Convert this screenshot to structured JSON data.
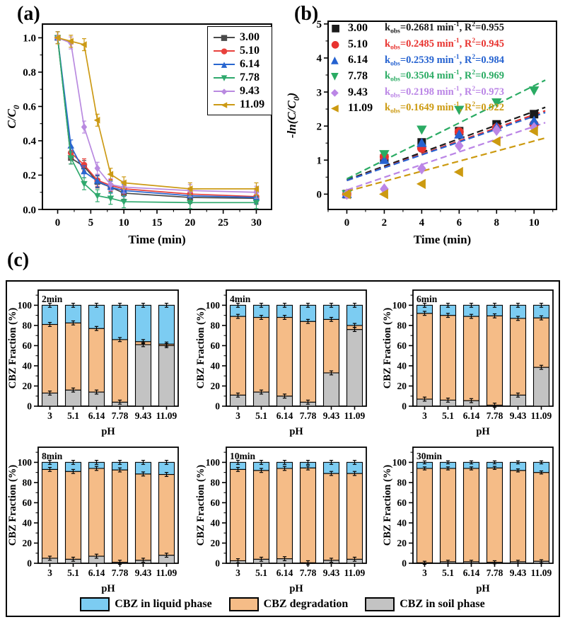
{
  "panel_a": {
    "label": "(a)"
  },
  "panel_b": {
    "label": "(b)"
  },
  "panel_c": {
    "label": "(c)",
    "legend": [
      {
        "label": "CBZ in liquid phase",
        "color": "#7cccf2"
      },
      {
        "label": "CBZ degradation",
        "color": "#f5bc87"
      },
      {
        "label": "CBZ in soil phase",
        "color": "#c3c3c3"
      }
    ]
  },
  "chart_data": [
    {
      "id": "chart-a",
      "type": "line",
      "xlabel": "Time (min)",
      "ylabel": [
        {
          "t": "C/C",
          "i": 1
        },
        {
          "t": "0",
          "i": 1,
          "sub": 1
        }
      ],
      "xlim": [
        -2.3,
        32.3
      ],
      "ylim": [
        0,
        1.08
      ],
      "xticks": [
        0,
        5,
        10,
        15,
        20,
        25,
        30
      ],
      "xtick_labels": [
        "0",
        "5",
        "10",
        "15",
        "20",
        "25",
        "30"
      ],
      "yticks": [
        0,
        0.2,
        0.4,
        0.6,
        0.8,
        1.0
      ],
      "ytick_labels": [
        "0.0",
        "0.2",
        "0.4",
        "0.6",
        "0.8",
        "1.0"
      ],
      "x": [
        0,
        2,
        4,
        6,
        8,
        10,
        20,
        30
      ],
      "err": 0.035,
      "series": [
        {
          "name": "3.00",
          "color": "#4a4a4a",
          "marker": "square",
          "values": [
            1.0,
            0.3,
            0.25,
            0.16,
            0.13,
            0.095,
            0.07,
            0.065
          ]
        },
        {
          "name": "5.10",
          "color": "#e8413c",
          "marker": "circle",
          "values": [
            1.0,
            0.33,
            0.26,
            0.17,
            0.14,
            0.12,
            0.09,
            0.075
          ]
        },
        {
          "name": "6.14",
          "color": "#2966d0",
          "marker": "triangle-up",
          "values": [
            1.0,
            0.37,
            0.22,
            0.165,
            0.13,
            0.11,
            0.08,
            0.07
          ]
        },
        {
          "name": "7.78",
          "color": "#2fa96d",
          "marker": "triangle-down",
          "values": [
            1.0,
            0.3,
            0.15,
            0.08,
            0.065,
            0.045,
            0.04,
            0.04
          ]
        },
        {
          "name": "9.43",
          "color": "#b98ae0",
          "marker": "diamond",
          "values": [
            1.0,
            0.97,
            0.48,
            0.24,
            0.145,
            0.13,
            0.11,
            0.1
          ]
        },
        {
          "name": "11.09",
          "color": "#cc9a15",
          "marker": "triangle-left",
          "values": [
            1.0,
            0.98,
            0.96,
            0.52,
            0.205,
            0.155,
            0.12,
            0.12
          ]
        }
      ]
    },
    {
      "id": "chart-b",
      "type": "scatter",
      "xlabel": "Time (min)",
      "ylabel": [
        {
          "t": "-ln(",
          "i": 1
        },
        {
          "t": "C/C",
          "i": 1
        },
        {
          "t": "0",
          "i": 1,
          "sub": 1
        },
        {
          "t": ")",
          "i": 1
        }
      ],
      "xlim": [
        -1,
        11.2
      ],
      "ylim": [
        -0.45,
        5.08
      ],
      "xticks": [
        0,
        2,
        4,
        6,
        8,
        10
      ],
      "xtick_labels": [
        "0",
        "2",
        "4",
        "6",
        "8",
        "10"
      ],
      "yticks": [
        0,
        1,
        2,
        3,
        4,
        5
      ],
      "ytick_labels": [
        "0",
        "1",
        "2",
        "3",
        "4",
        "5"
      ],
      "x": [
        0,
        2,
        4,
        6,
        8,
        10
      ],
      "series": [
        {
          "name": "3.00",
          "color": "#1a1a1a",
          "marker": "square",
          "kobs": "0.2681",
          "r2": "0.955",
          "fit_label": [
            {
              "t": "k"
            },
            {
              "t": "obs",
              "sub": 1
            },
            {
              "t": "=0.2681 min"
            },
            {
              "t": "-1",
              "sup": 1
            },
            {
              "t": ", R"
            },
            {
              "t": "2",
              "sup": 1
            },
            {
              "t": "=0.955"
            }
          ],
          "values": [
            0,
            1.05,
            1.52,
            1.85,
            2.05,
            2.35
          ],
          "fit": {
            "x0": 0,
            "y0": 0.42,
            "x1": 10.6,
            "y1": 2.55
          }
        },
        {
          "name": "5.10",
          "color": "#e8332f",
          "marker": "circle",
          "kobs": "0.2485",
          "r2": "0.945",
          "fit_label": [
            {
              "t": "k"
            },
            {
              "t": "obs",
              "sub": 1
            },
            {
              "t": "=0.2485 min"
            },
            {
              "t": "-1",
              "sup": 1
            },
            {
              "t": ", R"
            },
            {
              "t": "2",
              "sup": 1
            },
            {
              "t": "=0.945"
            }
          ],
          "values": [
            0,
            1.1,
            1.35,
            1.83,
            1.95,
            2.05
          ],
          "fit": {
            "x0": 0,
            "y0": 0.4,
            "x1": 10.6,
            "y1": 2.45
          }
        },
        {
          "name": "6.14",
          "color": "#2562d0",
          "marker": "triangle-up",
          "kobs": "0.2539",
          "r2": "0.984",
          "fit_label": [
            {
              "t": "k"
            },
            {
              "t": "obs",
              "sub": 1
            },
            {
              "t": "=0.2539 min"
            },
            {
              "t": "-1",
              "sup": 1
            },
            {
              "t": ", R"
            },
            {
              "t": "2",
              "sup": 1
            },
            {
              "t": "=0.984"
            }
          ],
          "values": [
            0,
            1.0,
            1.5,
            1.75,
            1.97,
            2.15
          ],
          "fit": {
            "x0": 0,
            "y0": 0.4,
            "x1": 10.6,
            "y1": 2.4
          }
        },
        {
          "name": "7.78",
          "color": "#2aab63",
          "marker": "triangle-down",
          "kobs": "0.3504",
          "r2": "0.969",
          "fit_label": [
            {
              "t": "k"
            },
            {
              "t": "obs",
              "sub": 1
            },
            {
              "t": "=0.3504 min"
            },
            {
              "t": "-1",
              "sup": 1
            },
            {
              "t": ", R"
            },
            {
              "t": "2",
              "sup": 1
            },
            {
              "t": "=0.969"
            }
          ],
          "values": [
            0,
            1.18,
            1.9,
            2.48,
            2.7,
            3.05
          ],
          "fit": {
            "x0": 0,
            "y0": 0.45,
            "x1": 10.6,
            "y1": 3.35
          }
        },
        {
          "name": "9.43",
          "color": "#bb86e6",
          "marker": "diamond",
          "kobs": "0.2198",
          "r2": "0.973",
          "fit_label": [
            {
              "t": "k"
            },
            {
              "t": "obs",
              "sub": 1
            },
            {
              "t": "=0.2198 min"
            },
            {
              "t": "-1",
              "sup": 1
            },
            {
              "t": ", R"
            },
            {
              "t": "2",
              "sup": 1
            },
            {
              "t": "=0.973"
            }
          ],
          "values": [
            0,
            0.15,
            0.75,
            1.42,
            1.88,
            1.95
          ],
          "fit": {
            "x0": 0,
            "y0": 0.12,
            "x1": 10.6,
            "y1": 2.1
          }
        },
        {
          "name": "11.09",
          "color": "#cc9a10",
          "marker": "triangle-left",
          "kobs": "0.1649",
          "r2": "0.922",
          "fit_label": [
            {
              "t": "k"
            },
            {
              "t": "obs",
              "sub": 1
            },
            {
              "t": "=0.1649 min"
            },
            {
              "t": "-1",
              "sup": 1
            },
            {
              "t": ", R"
            },
            {
              "t": "2",
              "sup": 1
            },
            {
              "t": "=0.922"
            }
          ],
          "values": [
            0,
            0.0,
            0.3,
            0.65,
            1.55,
            1.85
          ],
          "fit": {
            "x0": 0,
            "y0": 0.08,
            "x1": 10.6,
            "y1": 1.65
          }
        }
      ]
    },
    {
      "id": "chart-2min",
      "type": "bar",
      "title": "2min",
      "xlabel": "pH",
      "ylabel": "CBZ Fraction (%)",
      "ylim": [
        0,
        115
      ],
      "yticks": [
        0,
        20,
        40,
        60,
        80,
        100
      ],
      "ytick_labels": [
        "0",
        "20",
        "40",
        "60",
        "80",
        "100"
      ],
      "categories": [
        "3",
        "5.1",
        "6.14",
        "7.78",
        "9.43",
        "11.09"
      ],
      "err": 2,
      "series": [
        {
          "name": "CBZ in soil phase",
          "color": "#c3c3c3",
          "values": [
            13,
            16,
            14,
            4,
            61,
            60
          ]
        },
        {
          "name": "CBZ degradation",
          "color": "#f5bc87",
          "values": [
            68,
            66.5,
            63,
            62,
            3,
            1.5
          ]
        },
        {
          "name": "CBZ in liquid phase",
          "color": "#7cccf2",
          "values": [
            19,
            17.5,
            23,
            34,
            36,
            38.5
          ]
        }
      ]
    },
    {
      "id": "chart-4min",
      "type": "bar",
      "title": "4min",
      "xlabel": "pH",
      "ylabel": "CBZ Fraction (%)",
      "ylim": [
        0,
        115
      ],
      "yticks": [
        0,
        20,
        40,
        60,
        80,
        100
      ],
      "ytick_labels": [
        "0",
        "20",
        "40",
        "60",
        "80",
        "100"
      ],
      "categories": [
        "3",
        "5.1",
        "6.14",
        "7.78",
        "9.43",
        "11.09"
      ],
      "err": 2,
      "series": [
        {
          "name": "CBZ in soil phase",
          "color": "#c3c3c3",
          "values": [
            11,
            14,
            10,
            4,
            33,
            76
          ]
        },
        {
          "name": "CBZ degradation",
          "color": "#f5bc87",
          "values": [
            78,
            74,
            78,
            80,
            53,
            4
          ]
        },
        {
          "name": "CBZ in liquid phase",
          "color": "#7cccf2",
          "values": [
            11,
            12,
            12,
            16,
            14,
            20
          ]
        }
      ]
    },
    {
      "id": "chart-6min",
      "type": "bar",
      "title": "6min",
      "xlabel": "pH",
      "ylabel": "CBZ Fraction (%)",
      "ylim": [
        0,
        115
      ],
      "yticks": [
        0,
        20,
        40,
        60,
        80,
        100
      ],
      "ytick_labels": [
        "0",
        "20",
        "40",
        "60",
        "80",
        "100"
      ],
      "categories": [
        "3",
        "5.1",
        "6.14",
        "7.78",
        "9.43",
        "11.09"
      ],
      "err": 2,
      "series": [
        {
          "name": "CBZ in soil phase",
          "color": "#c3c3c3",
          "values": [
            7,
            6,
            5.5,
            1,
            11,
            38.5
          ]
        },
        {
          "name": "CBZ degradation",
          "color": "#f5bc87",
          "values": [
            85,
            84,
            83.5,
            88.5,
            76,
            49
          ]
        },
        {
          "name": "CBZ in liquid phase",
          "color": "#7cccf2",
          "values": [
            8,
            10,
            11,
            10.5,
            13,
            12.5
          ]
        }
      ]
    },
    {
      "id": "chart-8min",
      "type": "bar",
      "title": "8min",
      "xlabel": "pH",
      "ylabel": "CBZ Fraction (%)",
      "ylim": [
        0,
        115
      ],
      "yticks": [
        0,
        20,
        40,
        60,
        80,
        100
      ],
      "ytick_labels": [
        "0",
        "20",
        "40",
        "60",
        "80",
        "100"
      ],
      "categories": [
        "3",
        "5.1",
        "6.14",
        "7.78",
        "9.43",
        "11.09"
      ],
      "err": 2,
      "series": [
        {
          "name": "CBZ in soil phase",
          "color": "#c3c3c3",
          "values": [
            5,
            4,
            7,
            1,
            3,
            8
          ]
        },
        {
          "name": "CBZ degradation",
          "color": "#f5bc87",
          "values": [
            88,
            87,
            87,
            91.5,
            85.5,
            80
          ]
        },
        {
          "name": "CBZ in liquid phase",
          "color": "#7cccf2",
          "values": [
            7,
            9,
            6,
            7.5,
            11.5,
            12
          ]
        }
      ]
    },
    {
      "id": "chart-10min",
      "type": "bar",
      "title": "10min",
      "xlabel": "pH",
      "ylabel": "CBZ Fraction (%)",
      "ylim": [
        0,
        115
      ],
      "yticks": [
        0,
        20,
        40,
        60,
        80,
        100
      ],
      "ytick_labels": [
        "0",
        "20",
        "40",
        "60",
        "80",
        "100"
      ],
      "categories": [
        "3",
        "5.1",
        "6.14",
        "7.78",
        "9.43",
        "11.09"
      ],
      "err": 2,
      "series": [
        {
          "name": "CBZ in soil phase",
          "color": "#c3c3c3",
          "values": [
            2.5,
            4,
            4.5,
            0.5,
            3,
            4
          ]
        },
        {
          "name": "CBZ degradation",
          "color": "#f5bc87",
          "values": [
            90.5,
            88,
            89.5,
            94,
            86,
            85
          ]
        },
        {
          "name": "CBZ in liquid phase",
          "color": "#7cccf2",
          "values": [
            7,
            8,
            6,
            5.5,
            11,
            11
          ]
        }
      ]
    },
    {
      "id": "chart-30min",
      "type": "bar",
      "title": "30min",
      "xlabel": "pH",
      "ylabel": "CBZ Fraction (%)",
      "ylim": [
        0,
        115
      ],
      "yticks": [
        0,
        20,
        40,
        60,
        80,
        100
      ],
      "ytick_labels": [
        "0",
        "20",
        "40",
        "60",
        "80",
        "100"
      ],
      "categories": [
        "3",
        "5.1",
        "6.14",
        "7.78",
        "9.43",
        "11.09"
      ],
      "err": 1.5,
      "series": [
        {
          "name": "CBZ in soil phase",
          "color": "#c3c3c3",
          "values": [
            0.5,
            1.5,
            1.5,
            1,
            1.5,
            2
          ]
        },
        {
          "name": "CBZ degradation",
          "color": "#f5bc87",
          "values": [
            93.5,
            92.5,
            92.5,
            93.5,
            90.5,
            88
          ]
        },
        {
          "name": "CBZ in liquid phase",
          "color": "#7cccf2",
          "values": [
            6,
            6,
            6,
            5.5,
            8,
            10
          ]
        }
      ]
    }
  ]
}
